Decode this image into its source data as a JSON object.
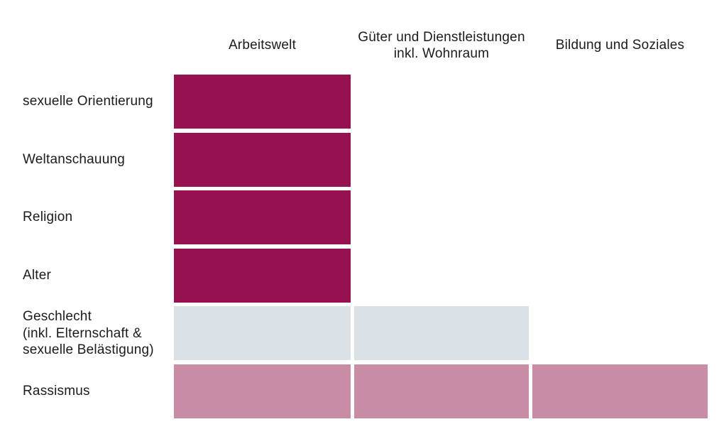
{
  "chart_data": {
    "type": "heatmap",
    "title": "",
    "legend_position": "none",
    "grid": "off",
    "columns": [
      "Arbeitswelt",
      "Güter und Dienstleistungen\ninkl. Wohnraum",
      "Bildung und Soziales"
    ],
    "rows": [
      {
        "label": "sexuelle Orientierung",
        "color": "berry",
        "cells": [
          true,
          false,
          false
        ]
      },
      {
        "label": "Weltanschauung",
        "color": "berry",
        "cells": [
          true,
          false,
          false
        ]
      },
      {
        "label": "Religion",
        "color": "berry",
        "cells": [
          true,
          false,
          false
        ]
      },
      {
        "label": "Alter",
        "color": "berry",
        "cells": [
          true,
          false,
          false
        ]
      },
      {
        "label": "Geschlecht\n(inkl. Elternschaft &\nsexuelle Belästigung)",
        "color": "greyblue",
        "cells": [
          true,
          true,
          false
        ]
      },
      {
        "label": "Rassismus",
        "color": "pink",
        "cells": [
          true,
          true,
          true
        ]
      }
    ],
    "palette": {
      "berry": "#961150",
      "greyblue": "#dae2e8",
      "pink": "#c88da4"
    },
    "background_color": "#ffffff",
    "text_color": "#1c1b1a"
  }
}
